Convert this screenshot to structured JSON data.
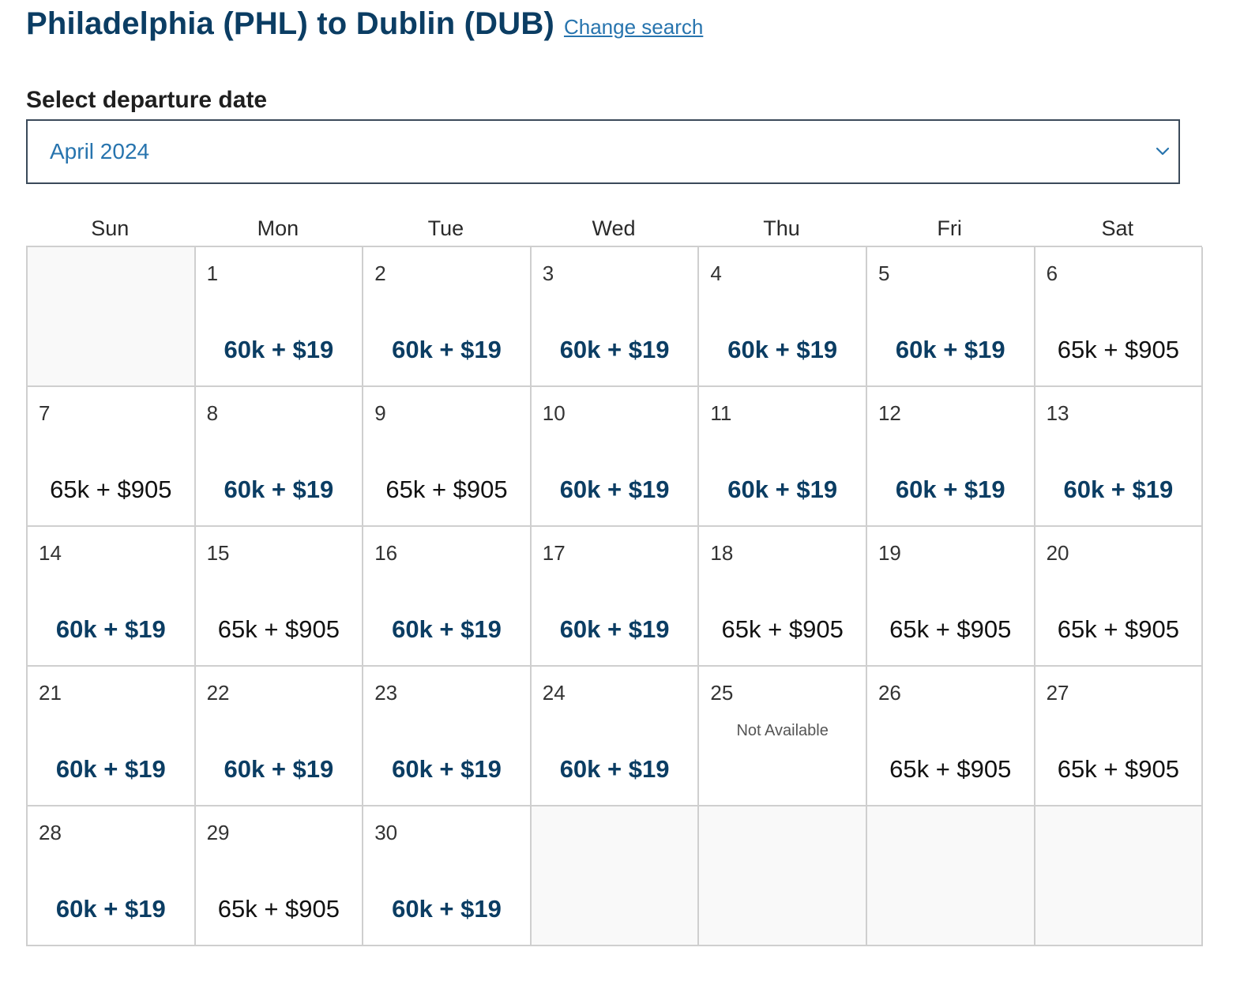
{
  "header": {
    "route_title": "Philadelphia (PHL) to Dublin (DUB)",
    "change_search": "Change search"
  },
  "date_picker": {
    "label": "Select departure date",
    "selected_month": "April 2024",
    "chevron_icon": "chevron-down-icon"
  },
  "calendar": {
    "weekdays": [
      "Sun",
      "Mon",
      "Tue",
      "Wed",
      "Thu",
      "Fri",
      "Sat"
    ],
    "leading_empty": 1,
    "trailing_empty": 4,
    "colors": {
      "low_price": "#0b3d63",
      "high_price": "#111111",
      "accent": "#2774ae"
    },
    "days": [
      {
        "day": "1",
        "price": "60k + $19",
        "tier": "low"
      },
      {
        "day": "2",
        "price": "60k + $19",
        "tier": "low"
      },
      {
        "day": "3",
        "price": "60k + $19",
        "tier": "low"
      },
      {
        "day": "4",
        "price": "60k + $19",
        "tier": "low"
      },
      {
        "day": "5",
        "price": "60k + $19",
        "tier": "low"
      },
      {
        "day": "6",
        "price": "65k + $905",
        "tier": "high"
      },
      {
        "day": "7",
        "price": "65k + $905",
        "tier": "high"
      },
      {
        "day": "8",
        "price": "60k + $19",
        "tier": "low"
      },
      {
        "day": "9",
        "price": "65k + $905",
        "tier": "high"
      },
      {
        "day": "10",
        "price": "60k + $19",
        "tier": "low"
      },
      {
        "day": "11",
        "price": "60k + $19",
        "tier": "low"
      },
      {
        "day": "12",
        "price": "60k + $19",
        "tier": "low"
      },
      {
        "day": "13",
        "price": "60k + $19",
        "tier": "low"
      },
      {
        "day": "14",
        "price": "60k + $19",
        "tier": "low"
      },
      {
        "day": "15",
        "price": "65k + $905",
        "tier": "high"
      },
      {
        "day": "16",
        "price": "60k + $19",
        "tier": "low"
      },
      {
        "day": "17",
        "price": "60k + $19",
        "tier": "low"
      },
      {
        "day": "18",
        "price": "65k + $905",
        "tier": "high"
      },
      {
        "day": "19",
        "price": "65k + $905",
        "tier": "high"
      },
      {
        "day": "20",
        "price": "65k + $905",
        "tier": "high"
      },
      {
        "day": "21",
        "price": "60k + $19",
        "tier": "low"
      },
      {
        "day": "22",
        "price": "60k + $19",
        "tier": "low"
      },
      {
        "day": "23",
        "price": "60k + $19",
        "tier": "low"
      },
      {
        "day": "24",
        "price": "60k + $19",
        "tier": "low"
      },
      {
        "day": "25",
        "status": "Not Available"
      },
      {
        "day": "26",
        "price": "65k + $905",
        "tier": "high"
      },
      {
        "day": "27",
        "price": "65k + $905",
        "tier": "high"
      },
      {
        "day": "28",
        "price": "60k + $19",
        "tier": "low"
      },
      {
        "day": "29",
        "price": "65k + $905",
        "tier": "high"
      },
      {
        "day": "30",
        "price": "60k + $19",
        "tier": "low"
      }
    ]
  }
}
